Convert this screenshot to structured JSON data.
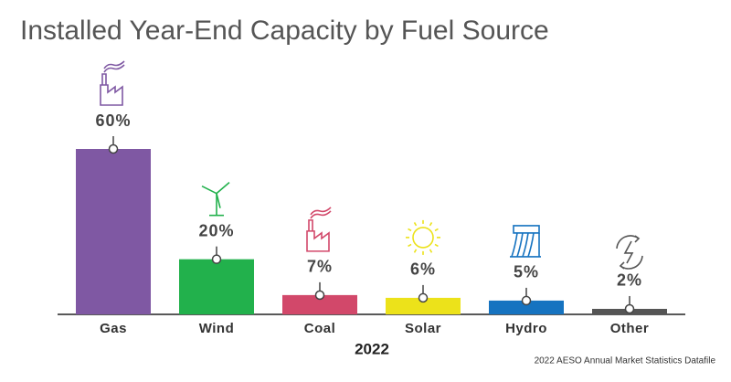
{
  "chart_data": {
    "type": "bar",
    "title": "Installed Year-End Capacity by Fuel Source",
    "categories": [
      "Gas",
      "Wind",
      "Coal",
      "Solar",
      "Hydro",
      "Other"
    ],
    "values": [
      60,
      20,
      7,
      6,
      5,
      2
    ],
    "value_labels": [
      "60%",
      "20%",
      "7%",
      "6%",
      "5%",
      "2%"
    ],
    "colors": [
      "#7f58a3",
      "#22b14c",
      "#d2486a",
      "#ece21a",
      "#1673c0",
      "#555555"
    ],
    "x_label": "2022",
    "source": "2022 AESO Annual Market Statistics Datafile"
  }
}
